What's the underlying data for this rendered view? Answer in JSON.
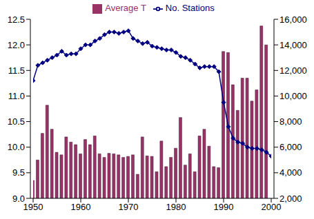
{
  "chart_data": {
    "type": "bar",
    "x": [
      1950,
      1951,
      1952,
      1953,
      1954,
      1955,
      1956,
      1957,
      1958,
      1959,
      1960,
      1961,
      1962,
      1963,
      1964,
      1965,
      1966,
      1967,
      1968,
      1969,
      1970,
      1971,
      1972,
      1973,
      1974,
      1975,
      1976,
      1977,
      1978,
      1979,
      1980,
      1981,
      1982,
      1983,
      1984,
      1985,
      1986,
      1987,
      1988,
      1989,
      1990,
      1991,
      1992,
      1993,
      1994,
      1995,
      1996,
      1997,
      1998,
      1999,
      2000
    ],
    "series": [
      {
        "name": "Average T",
        "type": "bar",
        "color": "#993366",
        "values": [
          9.35,
          9.75,
          10.27,
          10.82,
          10.35,
          9.9,
          9.85,
          10.2,
          10.1,
          10.05,
          9.87,
          10.15,
          10.05,
          10.22,
          9.87,
          9.8,
          9.88,
          9.87,
          9.85,
          9.8,
          9.82,
          9.85,
          9.47,
          10.2,
          9.83,
          9.82,
          9.52,
          10.12,
          9.62,
          9.8,
          9.98,
          10.58,
          9.65,
          9.87,
          9.52,
          10.22,
          10.35,
          10.02,
          9.62,
          9.6,
          11.87,
          11.85,
          11.22,
          10.72,
          11.35,
          11.35,
          10.9,
          11.12,
          12.37,
          12.0,
          null
        ]
      },
      {
        "name": "No. Stations",
        "type": "line",
        "axis": "y2",
        "color": "#000080",
        "marker": "diamond",
        "values": [
          11200,
          12400,
          12600,
          12800,
          13000,
          13200,
          13500,
          13200,
          13300,
          13300,
          13700,
          14000,
          14000,
          14300,
          14500,
          14800,
          15000,
          15000,
          14900,
          15000,
          15100,
          14500,
          14300,
          14100,
          14200,
          13900,
          13800,
          13700,
          13600,
          13600,
          13400,
          13100,
          13000,
          12800,
          12500,
          12200,
          12300,
          12300,
          12300,
          11900,
          9500,
          7600,
          6700,
          6400,
          6300,
          6000,
          5900,
          5900,
          5800,
          5600,
          5300
        ]
      }
    ],
    "xlim": [
      1950,
      2000
    ],
    "xticks": [
      1950,
      1960,
      1970,
      1980,
      1990,
      2000
    ],
    "ylim": [
      9.0,
      12.5
    ],
    "yticks": [
      {
        "value": 9.0,
        "label": "9.0"
      },
      {
        "value": 9.5,
        "label": "9.5"
      },
      {
        "value": 10.0,
        "label": "10.0"
      },
      {
        "value": 10.5,
        "label": "10.5"
      },
      {
        "value": 11.0,
        "label": "11.0"
      },
      {
        "value": 11.5,
        "label": "11.5"
      },
      {
        "value": 12.0,
        "label": "12.0"
      },
      {
        "value": 12.5,
        "label": "12.5"
      }
    ],
    "y2lim": [
      2000,
      16000
    ],
    "y2ticks": [
      {
        "value": 2000,
        "label": "2,000"
      },
      {
        "value": 4000,
        "label": "4,000"
      },
      {
        "value": 6000,
        "label": "6,000"
      },
      {
        "value": 8000,
        "label": "8,000"
      },
      {
        "value": 10000,
        "label": "10,000"
      },
      {
        "value": 12000,
        "label": "12,000"
      },
      {
        "value": 14000,
        "label": "14,000"
      },
      {
        "value": 16000,
        "label": "16,000"
      }
    ],
    "legend": "top",
    "grid": false
  }
}
